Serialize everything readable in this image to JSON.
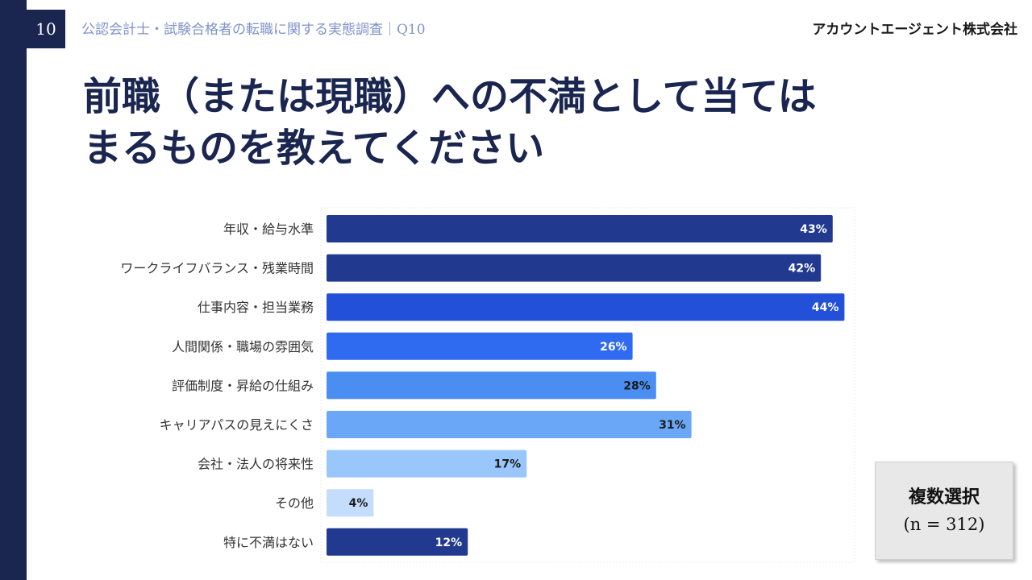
{
  "header": {
    "page_number": "10",
    "survey_title": "公認会計士・試験合格者の転職に関する実態調査｜Q10",
    "company": "アカウントエージェント株式会社"
  },
  "title": {
    "line1": "前職（または現職）への不満として当ては",
    "line2": "まるものを教えてください"
  },
  "note": {
    "line1": "複数選択",
    "line2": "(n = 312)"
  },
  "chart_data": {
    "type": "bar",
    "orientation": "horizontal",
    "categories": [
      "年収・給与水準",
      "ワークライフバランス・残業時間",
      "仕事内容・担当業務",
      "人間関係・職場の雰囲気",
      "評価制度・昇給の仕組み",
      "キャリアパスの見えにくさ",
      "会社・法人の将来性",
      "その他",
      "特に不満はない"
    ],
    "values": [
      43,
      42,
      44,
      26,
      28,
      31,
      17,
      4,
      12
    ],
    "value_labels": [
      "43%",
      "42%",
      "44%",
      "26%",
      "28%",
      "31%",
      "17%",
      "4%",
      "12%"
    ],
    "unit": "%",
    "bar_colors": [
      "#213a8f",
      "#213a8f",
      "#2250d9",
      "#2f6bf0",
      "#4a8ef2",
      "#6aa8f7",
      "#99c6fb",
      "#c4ddfc",
      "#213a8f"
    ],
    "label_colors": [
      "#ffffff",
      "#ffffff",
      "#ffffff",
      "#ffffff",
      "#1a1a1a",
      "#1a1a1a",
      "#1a1a1a",
      "#1a1a1a",
      "#ffffff"
    ],
    "xlim": [
      0,
      45
    ]
  }
}
